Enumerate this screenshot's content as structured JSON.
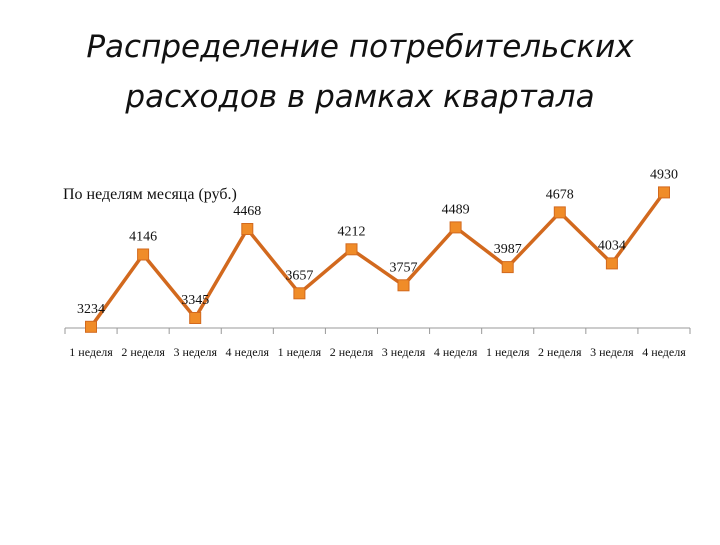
{
  "slide": {
    "title_line1": "Распределение потребительских",
    "title_line2": "расходов в рамках квартала"
  },
  "chart_data": {
    "type": "line",
    "title": "По неделям месяца (руб.)",
    "categories": [
      "1 неделя",
      "2 неделя",
      "3 неделя",
      "4 неделя",
      "1 неделя",
      "2 неделя",
      "3 неделя",
      "4 неделя",
      "1 неделя",
      "2 неделя",
      "3 неделя",
      "4 неделя"
    ],
    "series": [
      {
        "values": [
          3234,
          4146,
          3345,
          4468,
          3657,
          4212,
          3757,
          4489,
          3987,
          4678,
          4034,
          4930
        ],
        "labels": [
          "3234",
          "4146",
          "3345",
          "4468",
          "3657",
          "4212",
          "3757",
          "4489",
          "3987",
          "4678",
          "4034",
          "4930"
        ],
        "color": "#d2691e",
        "marker_color": "#f08c28"
      }
    ],
    "xlabel": "",
    "ylabel": "",
    "ylim": [
      3130,
      5150
    ],
    "grid": false,
    "legend": "none",
    "axis_color": "#999999"
  }
}
